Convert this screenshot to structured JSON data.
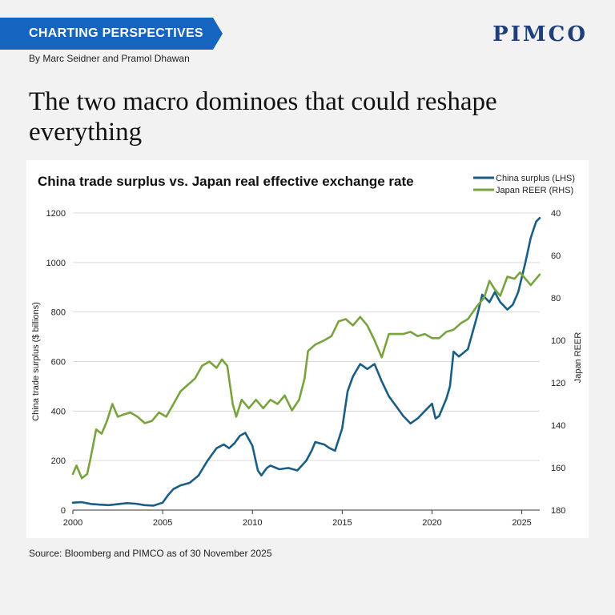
{
  "header": {
    "banner_label": "CHARTING PERSPECTIVES",
    "byline": "By Marc Seidner and Pramol Dhawan",
    "logo": "PIMCO",
    "headline": "The two macro dominoes that could reshape everything",
    "banner_color": "#1565c0"
  },
  "footer": {
    "source": "Source: Bloomberg and PIMCO as of 30 November 2025"
  },
  "chart_data": {
    "type": "line",
    "title": "China trade surplus vs. Japan real effective exchange rate",
    "xlabel": "",
    "ylabel": "China trade surplus ($ billions)",
    "y2label": "Japan REER",
    "xlim": [
      2000,
      2026
    ],
    "ylim": [
      0,
      1200
    ],
    "y2lim": [
      180,
      40
    ],
    "x_ticks": [
      2000,
      2005,
      2010,
      2015,
      2020,
      2025
    ],
    "y_ticks": [
      0,
      200,
      400,
      600,
      800,
      1000,
      1200
    ],
    "y2_ticks": [
      180,
      160,
      140,
      120,
      100,
      80,
      60,
      40
    ],
    "grid": true,
    "legend": "top-right",
    "series": [
      {
        "name": "China surplus (LHS)",
        "axis": "left",
        "color": "#1b5e85",
        "points": [
          [
            2000.0,
            30
          ],
          [
            2000.5,
            32
          ],
          [
            2001.0,
            25
          ],
          [
            2001.5,
            22
          ],
          [
            2002.0,
            20
          ],
          [
            2002.5,
            24
          ],
          [
            2003.0,
            28
          ],
          [
            2003.5,
            26
          ],
          [
            2004.0,
            20
          ],
          [
            2004.5,
            18
          ],
          [
            2005.0,
            30
          ],
          [
            2005.3,
            60
          ],
          [
            2005.6,
            85
          ],
          [
            2006.0,
            100
          ],
          [
            2006.5,
            110
          ],
          [
            2007.0,
            140
          ],
          [
            2007.5,
            200
          ],
          [
            2008.0,
            250
          ],
          [
            2008.4,
            265
          ],
          [
            2008.7,
            250
          ],
          [
            2009.0,
            270
          ],
          [
            2009.3,
            300
          ],
          [
            2009.6,
            312
          ],
          [
            2010.0,
            260
          ],
          [
            2010.3,
            160
          ],
          [
            2010.5,
            140
          ],
          [
            2010.8,
            170
          ],
          [
            2011.0,
            180
          ],
          [
            2011.5,
            165
          ],
          [
            2012.0,
            170
          ],
          [
            2012.5,
            160
          ],
          [
            2013.0,
            200
          ],
          [
            2013.3,
            240
          ],
          [
            2013.5,
            275
          ],
          [
            2014.0,
            265
          ],
          [
            2014.3,
            250
          ],
          [
            2014.6,
            240
          ],
          [
            2015.0,
            330
          ],
          [
            2015.3,
            480
          ],
          [
            2015.6,
            540
          ],
          [
            2016.0,
            590
          ],
          [
            2016.4,
            570
          ],
          [
            2016.8,
            590
          ],
          [
            2017.2,
            520
          ],
          [
            2017.6,
            460
          ],
          [
            2018.0,
            420
          ],
          [
            2018.4,
            380
          ],
          [
            2018.8,
            350
          ],
          [
            2019.2,
            370
          ],
          [
            2019.6,
            400
          ],
          [
            2020.0,
            430
          ],
          [
            2020.2,
            370
          ],
          [
            2020.4,
            380
          ],
          [
            2020.8,
            450
          ],
          [
            2021.0,
            500
          ],
          [
            2021.2,
            640
          ],
          [
            2021.5,
            620
          ],
          [
            2022.0,
            650
          ],
          [
            2022.5,
            780
          ],
          [
            2022.8,
            870
          ],
          [
            2023.2,
            840
          ],
          [
            2023.5,
            880
          ],
          [
            2023.8,
            840
          ],
          [
            2024.2,
            810
          ],
          [
            2024.5,
            830
          ],
          [
            2024.8,
            880
          ],
          [
            2025.2,
            1000
          ],
          [
            2025.5,
            1100
          ],
          [
            2025.8,
            1165
          ],
          [
            2026.0,
            1180
          ]
        ]
      },
      {
        "name": "Japan REER (RHS)",
        "axis": "right",
        "color": "#79a33e",
        "points": [
          [
            2000.0,
            163
          ],
          [
            2000.2,
            159
          ],
          [
            2000.5,
            165
          ],
          [
            2000.8,
            163
          ],
          [
            2001.0,
            155
          ],
          [
            2001.3,
            142
          ],
          [
            2001.6,
            144
          ],
          [
            2001.9,
            138
          ],
          [
            2002.2,
            130
          ],
          [
            2002.5,
            136
          ],
          [
            2002.8,
            135
          ],
          [
            2003.2,
            134
          ],
          [
            2003.6,
            136
          ],
          [
            2004.0,
            139
          ],
          [
            2004.4,
            138
          ],
          [
            2004.8,
            134
          ],
          [
            2005.2,
            136
          ],
          [
            2005.6,
            130
          ],
          [
            2006.0,
            124
          ],
          [
            2006.4,
            121
          ],
          [
            2006.8,
            118
          ],
          [
            2007.2,
            112
          ],
          [
            2007.6,
            110
          ],
          [
            2008.0,
            113
          ],
          [
            2008.3,
            109
          ],
          [
            2008.6,
            112
          ],
          [
            2008.9,
            130
          ],
          [
            2009.1,
            136
          ],
          [
            2009.4,
            128
          ],
          [
            2009.8,
            132
          ],
          [
            2010.2,
            128
          ],
          [
            2010.6,
            132
          ],
          [
            2011.0,
            128
          ],
          [
            2011.4,
            130
          ],
          [
            2011.8,
            126
          ],
          [
            2012.2,
            133
          ],
          [
            2012.6,
            128
          ],
          [
            2012.9,
            118
          ],
          [
            2013.1,
            105
          ],
          [
            2013.5,
            102
          ],
          [
            2014.0,
            100
          ],
          [
            2014.4,
            98
          ],
          [
            2014.8,
            91
          ],
          [
            2015.2,
            90
          ],
          [
            2015.6,
            93
          ],
          [
            2016.0,
            89
          ],
          [
            2016.4,
            93
          ],
          [
            2016.8,
            100
          ],
          [
            2017.2,
            108
          ],
          [
            2017.6,
            97
          ],
          [
            2018.0,
            97
          ],
          [
            2018.4,
            97
          ],
          [
            2018.8,
            96
          ],
          [
            2019.2,
            98
          ],
          [
            2019.6,
            97
          ],
          [
            2020.0,
            99
          ],
          [
            2020.4,
            99
          ],
          [
            2020.8,
            96
          ],
          [
            2021.2,
            95
          ],
          [
            2021.6,
            92
          ],
          [
            2022.0,
            90
          ],
          [
            2022.5,
            84
          ],
          [
            2022.9,
            80
          ],
          [
            2023.2,
            72
          ],
          [
            2023.5,
            76
          ],
          [
            2023.8,
            79
          ],
          [
            2024.2,
            70
          ],
          [
            2024.6,
            71
          ],
          [
            2024.9,
            68
          ],
          [
            2025.2,
            71
          ],
          [
            2025.5,
            74
          ],
          [
            2025.8,
            71
          ],
          [
            2026.0,
            69
          ]
        ]
      }
    ]
  }
}
